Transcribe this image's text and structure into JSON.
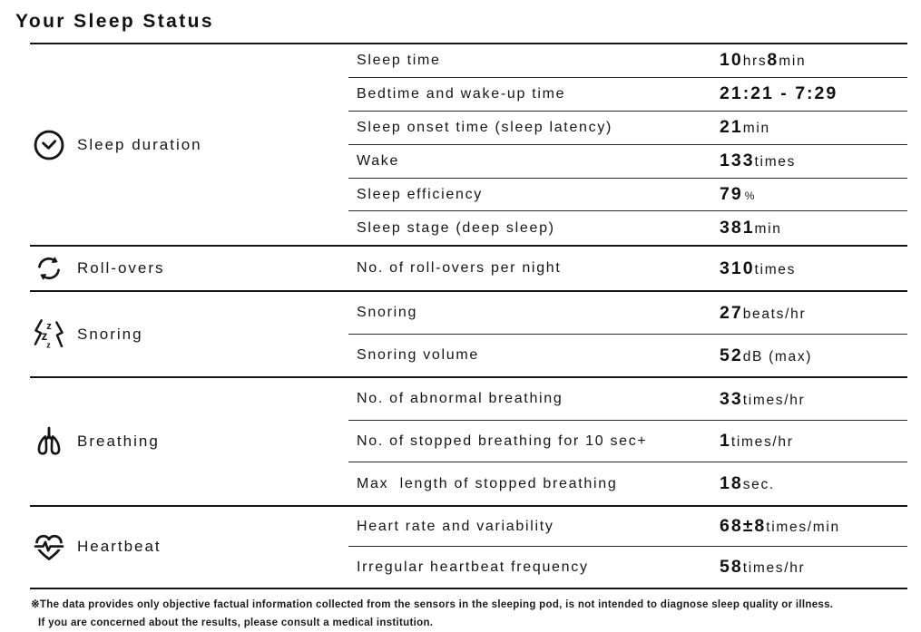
{
  "page": {
    "title": "Your Sleep Status"
  },
  "table": {
    "groups": [
      {
        "icon": "clock-icon",
        "category": "Sleep duration",
        "rows": [
          {
            "metric": "Sleep time",
            "value": [
              [
                "10",
                "num"
              ],
              [
                "hrs",
                "unit"
              ],
              [
                "8",
                "num"
              ],
              [
                "min",
                "unit"
              ]
            ]
          },
          {
            "metric": "Bedtime and wake-up time",
            "value": [
              [
                "21:21 - 7:29",
                "num"
              ]
            ]
          },
          {
            "metric": "Sleep onset time (sleep latency)",
            "value": [
              [
                "21",
                "num"
              ],
              [
                "min",
                "unit"
              ]
            ]
          },
          {
            "metric": "Wake",
            "value": [
              [
                "133",
                "num"
              ],
              [
                "times",
                "unit"
              ]
            ]
          },
          {
            "metric": "Sleep efficiency",
            "value": [
              [
                "79",
                "num"
              ],
              [
                "%",
                "small"
              ]
            ]
          },
          {
            "metric": "Sleep stage (deep sleep)",
            "value": [
              [
                "381",
                "num"
              ],
              [
                "min",
                "unit"
              ]
            ]
          }
        ]
      },
      {
        "icon": "roll-over-icon",
        "category": "Roll-overs",
        "rows": [
          {
            "metric": "No. of roll-overs per night",
            "value": [
              [
                "310",
                "num"
              ],
              [
                "times",
                "unit"
              ]
            ]
          }
        ]
      },
      {
        "icon": "snoring-icon",
        "category": "Snoring",
        "rows": [
          {
            "metric": "Snoring",
            "value": [
              [
                "27",
                "num"
              ],
              [
                "beats/hr",
                "unit"
              ]
            ]
          },
          {
            "metric": "Snoring volume",
            "value": [
              [
                "52",
                "num"
              ],
              [
                "dB (max)",
                "unit"
              ]
            ]
          }
        ]
      },
      {
        "icon": "lungs-icon",
        "category": "Breathing",
        "rows": [
          {
            "metric": "No. of abnormal breathing",
            "value": [
              [
                "33",
                "num"
              ],
              [
                "times/hr",
                "unit"
              ]
            ]
          },
          {
            "metric": "No. of stopped breathing for 10 sec+",
            "value": [
              [
                "1",
                "num"
              ],
              [
                "times/hr",
                "unit"
              ]
            ]
          },
          {
            "metric": "Max  length of stopped breathing",
            "value": [
              [
                "18",
                "num"
              ],
              [
                "sec.",
                "unit"
              ]
            ]
          }
        ]
      },
      {
        "icon": "heart-ecg-icon",
        "category": "Heartbeat",
        "rows": [
          {
            "metric": "Heart rate and variability",
            "value": [
              [
                "68±8",
                "num"
              ],
              [
                "times/min",
                "unit"
              ]
            ]
          },
          {
            "metric": "Irregular heartbeat frequency",
            "value": [
              [
                "58",
                "num"
              ],
              [
                "times/hr",
                "unit"
              ]
            ]
          }
        ]
      }
    ]
  },
  "footnote": {
    "line1": "※The data provides only objective factual information collected from the sensors in the sleeping pod, is not intended to diagnose sleep quality or illness.",
    "line2": "If you are concerned about the results, please consult a medical institution."
  },
  "colors": {
    "ink": "#151515",
    "background": "#ffffff"
  }
}
